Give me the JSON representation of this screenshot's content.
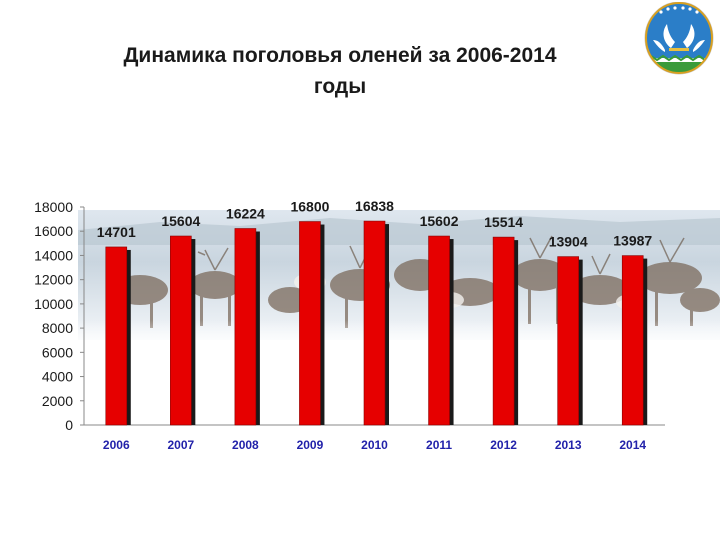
{
  "chart_data": {
    "type": "bar",
    "title_lines": [
      "Динамика поголовья оленей за 2006-2014",
      "годы"
    ],
    "categories": [
      "2006",
      "2007",
      "2008",
      "2009",
      "2010",
      "2011",
      "2012",
      "2013",
      "2014"
    ],
    "values": [
      14701,
      15604,
      16224,
      16800,
      16838,
      15602,
      15514,
      13904,
      13987
    ],
    "data_labels": [
      "14701",
      "15604",
      "16224",
      "16800",
      "16838",
      "15602",
      "15514",
      "13904",
      "13987"
    ],
    "y_ticks": [
      "0",
      "2000",
      "4000",
      "6000",
      "8000",
      "10000",
      "12000",
      "14000",
      "16000",
      "18000"
    ],
    "ylim": [
      0,
      18000
    ],
    "xlabel": "",
    "ylabel": "",
    "grid": false,
    "legend": "none",
    "colors": {
      "bar": "#e60000",
      "bar_shadow": "#1a1a1a",
      "category_label": "#2222aa",
      "text": "#1a1a1a"
    }
  },
  "background_image": "reindeer-herd-photo",
  "emblem": "regional-coat-of-arms-icon"
}
